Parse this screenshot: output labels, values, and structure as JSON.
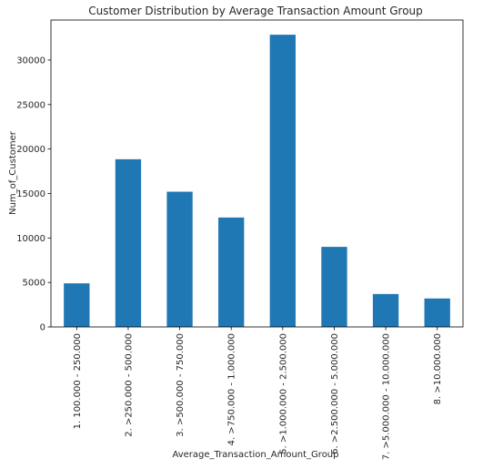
{
  "chart_data": {
    "type": "bar",
    "title": "Customer Distribution by Average Transaction Amount Group",
    "xlabel": "Average_Transaction_Amount_Group",
    "ylabel": "Num_of_Customer",
    "categories": [
      "1. 100.000 - 250.000",
      "2. >250.000 - 500.000",
      "3. >500.000 - 750.000",
      "4. >750.000 - 1.000.000",
      "5. >1.000.000 - 2.500.000",
      "6. >2.500.000 - 5.000.000",
      "7. >5.000.000 - 10.000.000",
      "8. >10.000.000"
    ],
    "values": [
      4900,
      18850,
      15200,
      12300,
      32850,
      9000,
      3700,
      3200
    ],
    "ylim": [
      0,
      34500
    ],
    "yticks": [
      0,
      5000,
      10000,
      15000,
      20000,
      25000,
      30000
    ],
    "grid": false,
    "legend": "none",
    "bar_color": "#1f77b4"
  }
}
